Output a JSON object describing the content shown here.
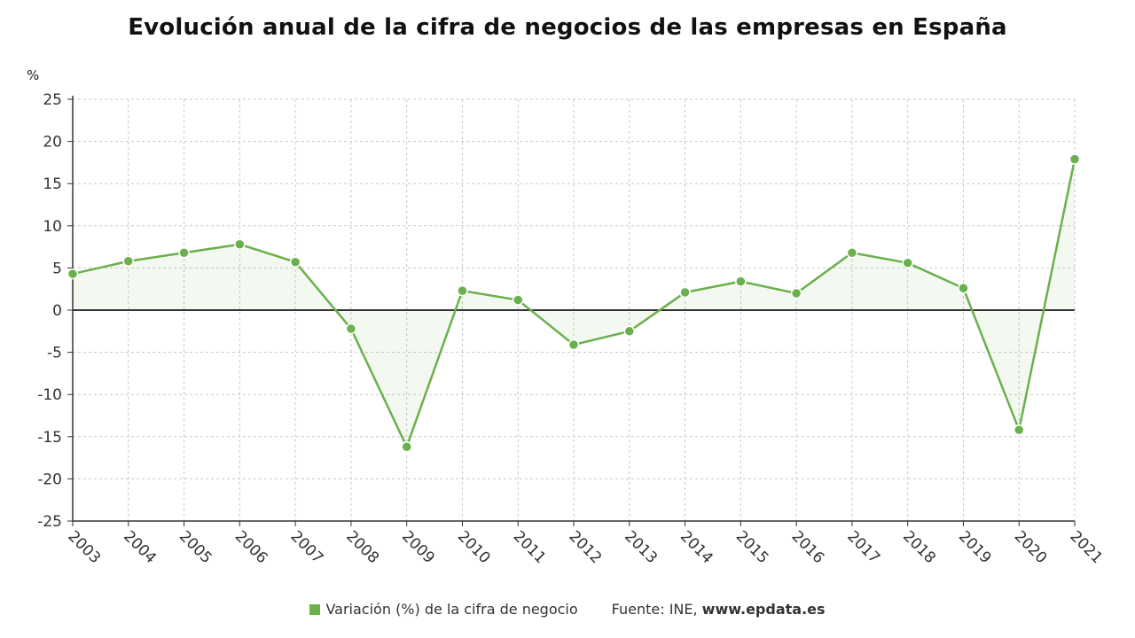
{
  "chart_data": {
    "type": "line",
    "title": "Evolución anual de la cifra de negocios de las empresas en España",
    "ylabel": "%",
    "xlabel": "",
    "x": [
      "2003",
      "2004",
      "2005",
      "2006",
      "2007",
      "2008",
      "2009",
      "2010",
      "2011",
      "2012",
      "2013",
      "2014",
      "2015",
      "2016",
      "2017",
      "2018",
      "2019",
      "2020",
      "2021"
    ],
    "series": [
      {
        "name": "Variación (%) de la cifra de negocio",
        "values": [
          4.3,
          5.8,
          6.8,
          7.8,
          5.7,
          -2.2,
          -16.2,
          2.3,
          1.2,
          -4.1,
          -2.5,
          2.1,
          3.4,
          2.0,
          6.8,
          5.6,
          2.6,
          -14.2,
          17.9
        ]
      }
    ],
    "ylim": [
      -25,
      25
    ],
    "yticks": [
      25,
      20,
      15,
      10,
      5,
      0,
      -5,
      -10,
      -15,
      -20,
      -25
    ],
    "grid": true,
    "legend": "bottom",
    "line_color": "#6ab04c"
  },
  "footer": {
    "source_prefix": "Fuente: INE, ",
    "source_site": "www.epdata.es"
  }
}
